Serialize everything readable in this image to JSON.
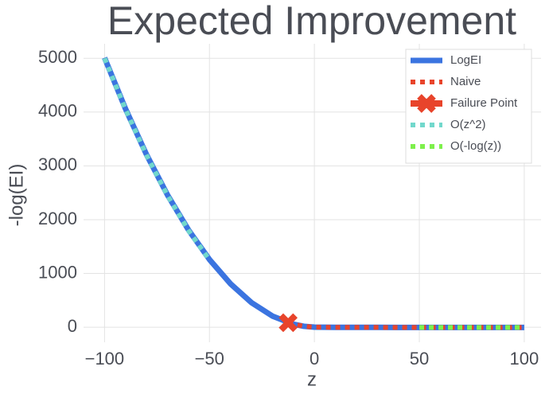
{
  "chart_data": {
    "type": "line",
    "title": "Expected Improvement",
    "x_label": "z",
    "y_label": "-log(EI)",
    "xlim": [
      -110,
      108
    ],
    "ylim": [
      -280,
      5270
    ],
    "xticks": [
      {
        "value": -100,
        "label": "−100"
      },
      {
        "value": -50,
        "label": "−50"
      },
      0,
      50,
      100
    ],
    "yticks": [
      0,
      1000,
      2000,
      3000,
      4000,
      5000
    ],
    "grid": true,
    "legend": "upper right",
    "series": [
      {
        "name": "LogEI",
        "color": "#3b74e0",
        "style": "solid",
        "x": [
          -100,
          -90,
          -80,
          -70,
          -60,
          -50,
          -40,
          -30,
          -20,
          -10,
          -5,
          0,
          10,
          20,
          30,
          40,
          50,
          60,
          70,
          80,
          90,
          100
        ],
        "values": [
          5010.1,
          4059.9,
          3209.7,
          2459.4,
          1809.1,
          1258.7,
          808.3,
          457.7,
          206.9,
          55.5,
          16.9,
          0.92,
          -2.3,
          -3.0,
          -3.4,
          -3.69,
          -3.91,
          -4.09,
          -4.25,
          -4.38,
          -4.5,
          -4.61
        ]
      },
      {
        "name": "Naive",
        "color": "#e8442b",
        "style": "dot",
        "x": [
          -12.5,
          -10,
          -5,
          0,
          10,
          20,
          30,
          40,
          50,
          60,
          70,
          80,
          90,
          100
        ],
        "values": [
          84,
          55.5,
          16.9,
          0.92,
          -2.3,
          -3.0,
          -3.4,
          -3.69,
          -3.91,
          -4.09,
          -4.25,
          -4.38,
          -4.5,
          -4.61
        ]
      },
      {
        "name": "Failure Point",
        "color": "#e8442b",
        "style": "marker",
        "x": [
          -12.5
        ],
        "values": [
          84
        ]
      },
      {
        "name": "O(z^2)",
        "color": "#72d8cc",
        "style": "dot",
        "x": [
          -100,
          -90,
          -80,
          -70,
          -60,
          -50
        ],
        "values": [
          5000,
          4050,
          3200,
          2450,
          1800,
          1250
        ]
      },
      {
        "name": "O(-log(z))",
        "color": "#7ef04c",
        "style": "dot",
        "x": [
          50,
          60,
          70,
          80,
          90,
          100
        ],
        "values": [
          -3.91,
          -4.09,
          -4.25,
          -4.38,
          -4.5,
          -4.61
        ]
      }
    ]
  }
}
